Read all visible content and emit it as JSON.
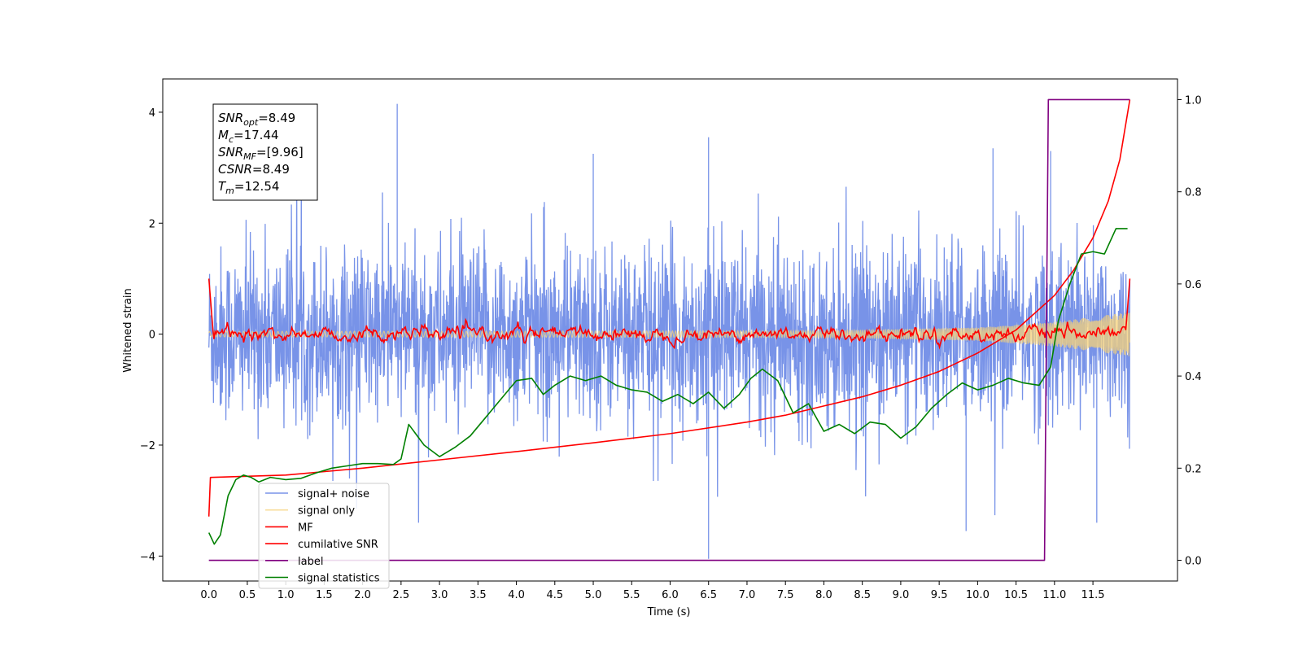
{
  "chart_data": {
    "type": "line",
    "title": "",
    "xlabel": "Time (s)",
    "ylabel": "Whitened strain",
    "xlim": [
      -0.6,
      12.6
    ],
    "ylim": [
      -4.45,
      4.6
    ],
    "ylim_right": [
      -0.045,
      1.045
    ],
    "x_ticks": [
      0.0,
      0.5,
      1.0,
      1.5,
      2.0,
      2.5,
      3.0,
      3.5,
      4.0,
      4.5,
      5.0,
      5.5,
      6.0,
      6.5,
      7.0,
      7.5,
      8.0,
      8.5,
      9.0,
      9.5,
      10.0,
      10.5,
      11.0,
      11.5
    ],
    "x_tick_labels": [
      "0.0",
      "0.5",
      "1.0",
      "1.5",
      "2.0",
      "2.5",
      "3.0",
      "3.5",
      "4.0",
      "4.5",
      "5.0",
      "5.5",
      "6.0",
      "6.5",
      "7.0",
      "7.5",
      "8.0",
      "8.5",
      "9.0",
      "9.5",
      "10.0",
      "10.5",
      "11.0",
      "11.5"
    ],
    "y_ticks": [
      -4,
      -2,
      0,
      2,
      4
    ],
    "y_tick_labels": [
      "−4",
      "−2",
      "0",
      "2",
      "4"
    ],
    "y_ticks_right": [
      0.0,
      0.2,
      0.4,
      0.6,
      0.8,
      1.0
    ],
    "y_tick_labels_right": [
      "0.0",
      "0.2",
      "0.4",
      "0.6",
      "0.8",
      "1.0"
    ],
    "grid": false,
    "legend_position": "lower-left",
    "info_box": [
      {
        "main": "SNR",
        "sub": "opt",
        "value": "=8.49"
      },
      {
        "main": "M",
        "sub": "c",
        "value": "=17.44"
      },
      {
        "main": "SNR",
        "sub": "MF",
        "value": "=[9.96]"
      },
      {
        "main": "CSNR",
        "sub": "",
        "value": "=8.49"
      },
      {
        "main": "T",
        "sub": "m",
        "value": "=12.54"
      }
    ],
    "series": [
      {
        "name": "signal+ noise",
        "color": "#7893e8",
        "axis": "left",
        "t_end": 11.98,
        "noise_std": 0.78,
        "spikes": [
          [
            2.45,
            4.15
          ],
          [
            6.5,
            -4.05
          ],
          [
            6.5,
            3.55
          ],
          [
            9.85,
            -3.55
          ],
          [
            10.95,
            3.3
          ],
          [
            11.55,
            -3.4
          ],
          [
            10.2,
            3.35
          ],
          [
            5.0,
            3.25
          ]
        ]
      },
      {
        "name": "signal only",
        "color": "#f5d27a",
        "axis": "left",
        "t_end": 11.98,
        "envelope": [
          [
            0.0,
            0.05
          ],
          [
            8.0,
            0.06
          ],
          [
            10.0,
            0.12
          ],
          [
            11.0,
            0.22
          ],
          [
            11.98,
            0.4
          ]
        ]
      },
      {
        "name": "MF",
        "color": "#ff0000",
        "axis": "left",
        "start_value": 1.0,
        "end_value": 1.0,
        "t_end": 11.98
      },
      {
        "name": "cumilative SNR",
        "color": "#ff0000",
        "axis": "right",
        "points": [
          [
            0.0,
            0.095
          ],
          [
            0.02,
            0.18
          ],
          [
            1.0,
            0.185
          ],
          [
            2.0,
            0.2
          ],
          [
            3.0,
            0.218
          ],
          [
            4.0,
            0.236
          ],
          [
            5.0,
            0.255
          ],
          [
            6.0,
            0.275
          ],
          [
            7.0,
            0.3
          ],
          [
            7.5,
            0.315
          ],
          [
            8.0,
            0.335
          ],
          [
            8.5,
            0.355
          ],
          [
            9.0,
            0.38
          ],
          [
            9.5,
            0.41
          ],
          [
            10.0,
            0.45
          ],
          [
            10.5,
            0.5
          ],
          [
            11.0,
            0.575
          ],
          [
            11.25,
            0.63
          ],
          [
            11.5,
            0.7
          ],
          [
            11.7,
            0.78
          ],
          [
            11.85,
            0.87
          ],
          [
            11.98,
            1.0
          ]
        ]
      },
      {
        "name": "label",
        "color": "#800080",
        "axis": "right",
        "points": [
          [
            0.0,
            0.0
          ],
          [
            10.87,
            0.0
          ],
          [
            10.92,
            1.0
          ],
          [
            11.98,
            1.0
          ]
        ]
      },
      {
        "name": "signal statistics",
        "color": "#008000",
        "axis": "right",
        "points": [
          [
            0.0,
            0.06
          ],
          [
            0.07,
            0.035
          ],
          [
            0.15,
            0.055
          ],
          [
            0.25,
            0.14
          ],
          [
            0.35,
            0.175
          ],
          [
            0.45,
            0.185
          ],
          [
            0.55,
            0.18
          ],
          [
            0.65,
            0.17
          ],
          [
            0.8,
            0.18
          ],
          [
            1.0,
            0.175
          ],
          [
            1.2,
            0.178
          ],
          [
            1.4,
            0.19
          ],
          [
            1.6,
            0.2
          ],
          [
            1.8,
            0.205
          ],
          [
            2.0,
            0.21
          ],
          [
            2.2,
            0.21
          ],
          [
            2.4,
            0.208
          ],
          [
            2.5,
            0.22
          ],
          [
            2.6,
            0.295
          ],
          [
            2.8,
            0.25
          ],
          [
            3.0,
            0.225
          ],
          [
            3.2,
            0.245
          ],
          [
            3.4,
            0.27
          ],
          [
            3.6,
            0.31
          ],
          [
            3.8,
            0.35
          ],
          [
            4.0,
            0.39
          ],
          [
            4.2,
            0.395
          ],
          [
            4.35,
            0.36
          ],
          [
            4.5,
            0.38
          ],
          [
            4.7,
            0.4
          ],
          [
            4.9,
            0.39
          ],
          [
            5.1,
            0.4
          ],
          [
            5.3,
            0.38
          ],
          [
            5.5,
            0.37
          ],
          [
            5.7,
            0.365
          ],
          [
            5.9,
            0.345
          ],
          [
            6.1,
            0.36
          ],
          [
            6.3,
            0.34
          ],
          [
            6.5,
            0.365
          ],
          [
            6.7,
            0.33
          ],
          [
            6.9,
            0.36
          ],
          [
            7.05,
            0.395
          ],
          [
            7.2,
            0.415
          ],
          [
            7.4,
            0.39
          ],
          [
            7.6,
            0.32
          ],
          [
            7.8,
            0.34
          ],
          [
            8.0,
            0.28
          ],
          [
            8.2,
            0.295
          ],
          [
            8.4,
            0.275
          ],
          [
            8.6,
            0.3
          ],
          [
            8.8,
            0.295
          ],
          [
            9.0,
            0.265
          ],
          [
            9.2,
            0.29
          ],
          [
            9.4,
            0.33
          ],
          [
            9.6,
            0.36
          ],
          [
            9.8,
            0.385
          ],
          [
            10.0,
            0.37
          ],
          [
            10.2,
            0.38
          ],
          [
            10.4,
            0.395
          ],
          [
            10.6,
            0.385
          ],
          [
            10.8,
            0.38
          ],
          [
            10.95,
            0.42
          ],
          [
            11.05,
            0.52
          ],
          [
            11.2,
            0.6
          ],
          [
            11.35,
            0.665
          ],
          [
            11.5,
            0.67
          ],
          [
            11.65,
            0.665
          ],
          [
            11.8,
            0.72
          ],
          [
            11.95,
            0.72
          ]
        ]
      }
    ]
  }
}
